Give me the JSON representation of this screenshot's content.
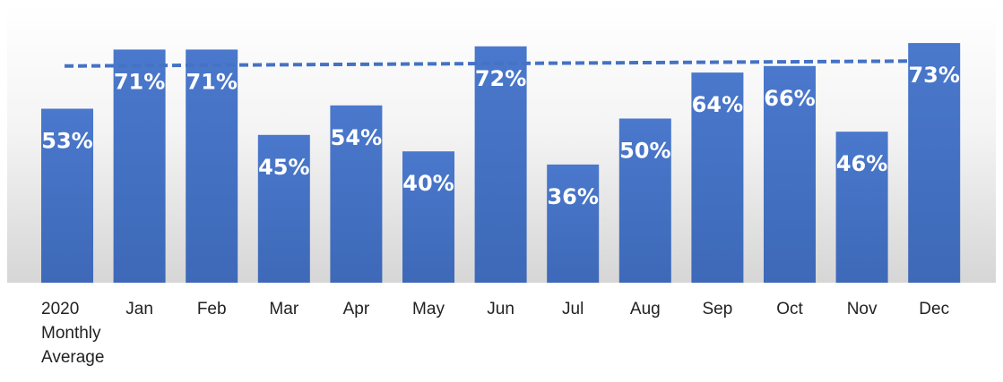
{
  "chart_data": {
    "type": "bar",
    "categories": [
      [
        "2020",
        "Monthly",
        "Average"
      ],
      [
        "Jan"
      ],
      [
        "Feb"
      ],
      [
        "Mar"
      ],
      [
        "Apr"
      ],
      [
        "May"
      ],
      [
        "Jun"
      ],
      [
        "Jul"
      ],
      [
        "Aug"
      ],
      [
        "Sep"
      ],
      [
        "Oct"
      ],
      [
        "Nov"
      ],
      [
        "Dec"
      ]
    ],
    "values": [
      53,
      71,
      71,
      45,
      54,
      40,
      72,
      36,
      50,
      64,
      66,
      46,
      73
    ],
    "value_labels": [
      "53%",
      "71%",
      "71%",
      "45%",
      "54%",
      "40%",
      "72%",
      "36%",
      "50%",
      "64%",
      "66%",
      "46%",
      "73%"
    ],
    "trend_line": {
      "style": "dashed",
      "start": 66,
      "end": 67.5
    },
    "ylim": [
      0,
      80
    ],
    "grid": false,
    "legend": "none",
    "colors": {
      "bar": "#4472c4",
      "trend": "#4472c4",
      "label": "#ffffff",
      "background_top": "#ffffff",
      "background_bottom": "#d9d9d9"
    }
  }
}
